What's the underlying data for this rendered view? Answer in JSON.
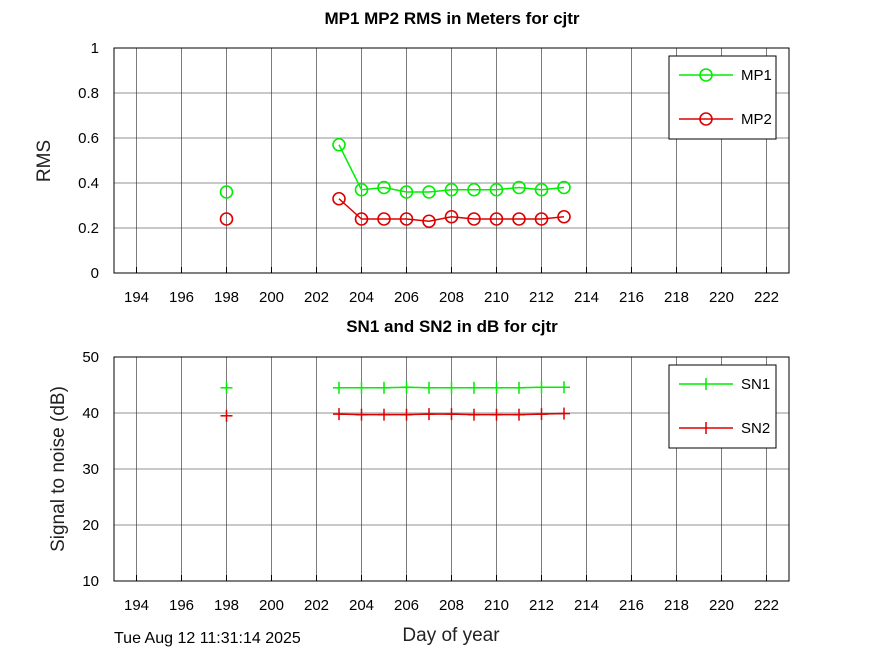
{
  "footer": {
    "timestamp": "Tue Aug 12 11:31:14 2025",
    "xlabel": "Day of year"
  },
  "chart_data": [
    {
      "type": "line",
      "title": "MP1 MP2 RMS in Meters for cjtr",
      "xlabel": "",
      "ylabel": "RMS",
      "xlim": [
        193,
        223
      ],
      "ylim": [
        0,
        1
      ],
      "xticks": [
        "194",
        "196",
        "198",
        "200",
        "202",
        "204",
        "206",
        "208",
        "210",
        "212",
        "214",
        "216",
        "218",
        "220",
        "222"
      ],
      "yticks": [
        "0",
        "0.2",
        "0.4",
        "0.6",
        "0.8",
        "1"
      ],
      "grid": true,
      "legend_position": "top-right",
      "marker": "circle",
      "series": [
        {
          "name": "MP1",
          "color": "#00ee00",
          "points": [
            [
              198,
              0.36
            ],
            [
              203,
              0.57
            ],
            [
              204,
              0.37
            ],
            [
              205,
              0.38
            ],
            [
              206,
              0.36
            ],
            [
              207,
              0.36
            ],
            [
              208,
              0.37
            ],
            [
              209,
              0.37
            ],
            [
              210,
              0.37
            ],
            [
              211,
              0.38
            ],
            [
              212,
              0.37
            ],
            [
              213,
              0.38
            ]
          ]
        },
        {
          "name": "MP2",
          "color": "#dd0000",
          "points": [
            [
              198,
              0.24
            ],
            [
              203,
              0.33
            ],
            [
              204,
              0.24
            ],
            [
              205,
              0.24
            ],
            [
              206,
              0.24
            ],
            [
              207,
              0.23
            ],
            [
              208,
              0.25
            ],
            [
              209,
              0.24
            ],
            [
              210,
              0.24
            ],
            [
              211,
              0.24
            ],
            [
              212,
              0.24
            ],
            [
              213,
              0.25
            ]
          ]
        }
      ]
    },
    {
      "type": "line",
      "title": "SN1 and SN2 in dB for cjtr",
      "xlabel": "Day of year",
      "ylabel": "Signal to noise (dB)",
      "xlim": [
        193,
        223
      ],
      "ylim": [
        10,
        50
      ],
      "xticks": [
        "194",
        "196",
        "198",
        "200",
        "202",
        "204",
        "206",
        "208",
        "210",
        "212",
        "214",
        "216",
        "218",
        "220",
        "222"
      ],
      "yticks": [
        "10",
        "20",
        "30",
        "40",
        "50"
      ],
      "grid": true,
      "legend_position": "top-right",
      "marker": "plus",
      "series": [
        {
          "name": "SN1",
          "color": "#00ee00",
          "points": [
            [
              198,
              44.5
            ],
            [
              203,
              44.5
            ],
            [
              204,
              44.5
            ],
            [
              205,
              44.5
            ],
            [
              206,
              44.6
            ],
            [
              207,
              44.5
            ],
            [
              208,
              44.5
            ],
            [
              209,
              44.5
            ],
            [
              210,
              44.5
            ],
            [
              211,
              44.5
            ],
            [
              212,
              44.6
            ],
            [
              213,
              44.6
            ]
          ]
        },
        {
          "name": "SN2",
          "color": "#dd0000",
          "points": [
            [
              198,
              39.5
            ],
            [
              203,
              39.8
            ],
            [
              204,
              39.7
            ],
            [
              205,
              39.7
            ],
            [
              206,
              39.7
            ],
            [
              207,
              39.8
            ],
            [
              208,
              39.8
            ],
            [
              209,
              39.7
            ],
            [
              210,
              39.7
            ],
            [
              211,
              39.7
            ],
            [
              212,
              39.8
            ],
            [
              213,
              39.9
            ]
          ]
        }
      ]
    }
  ]
}
